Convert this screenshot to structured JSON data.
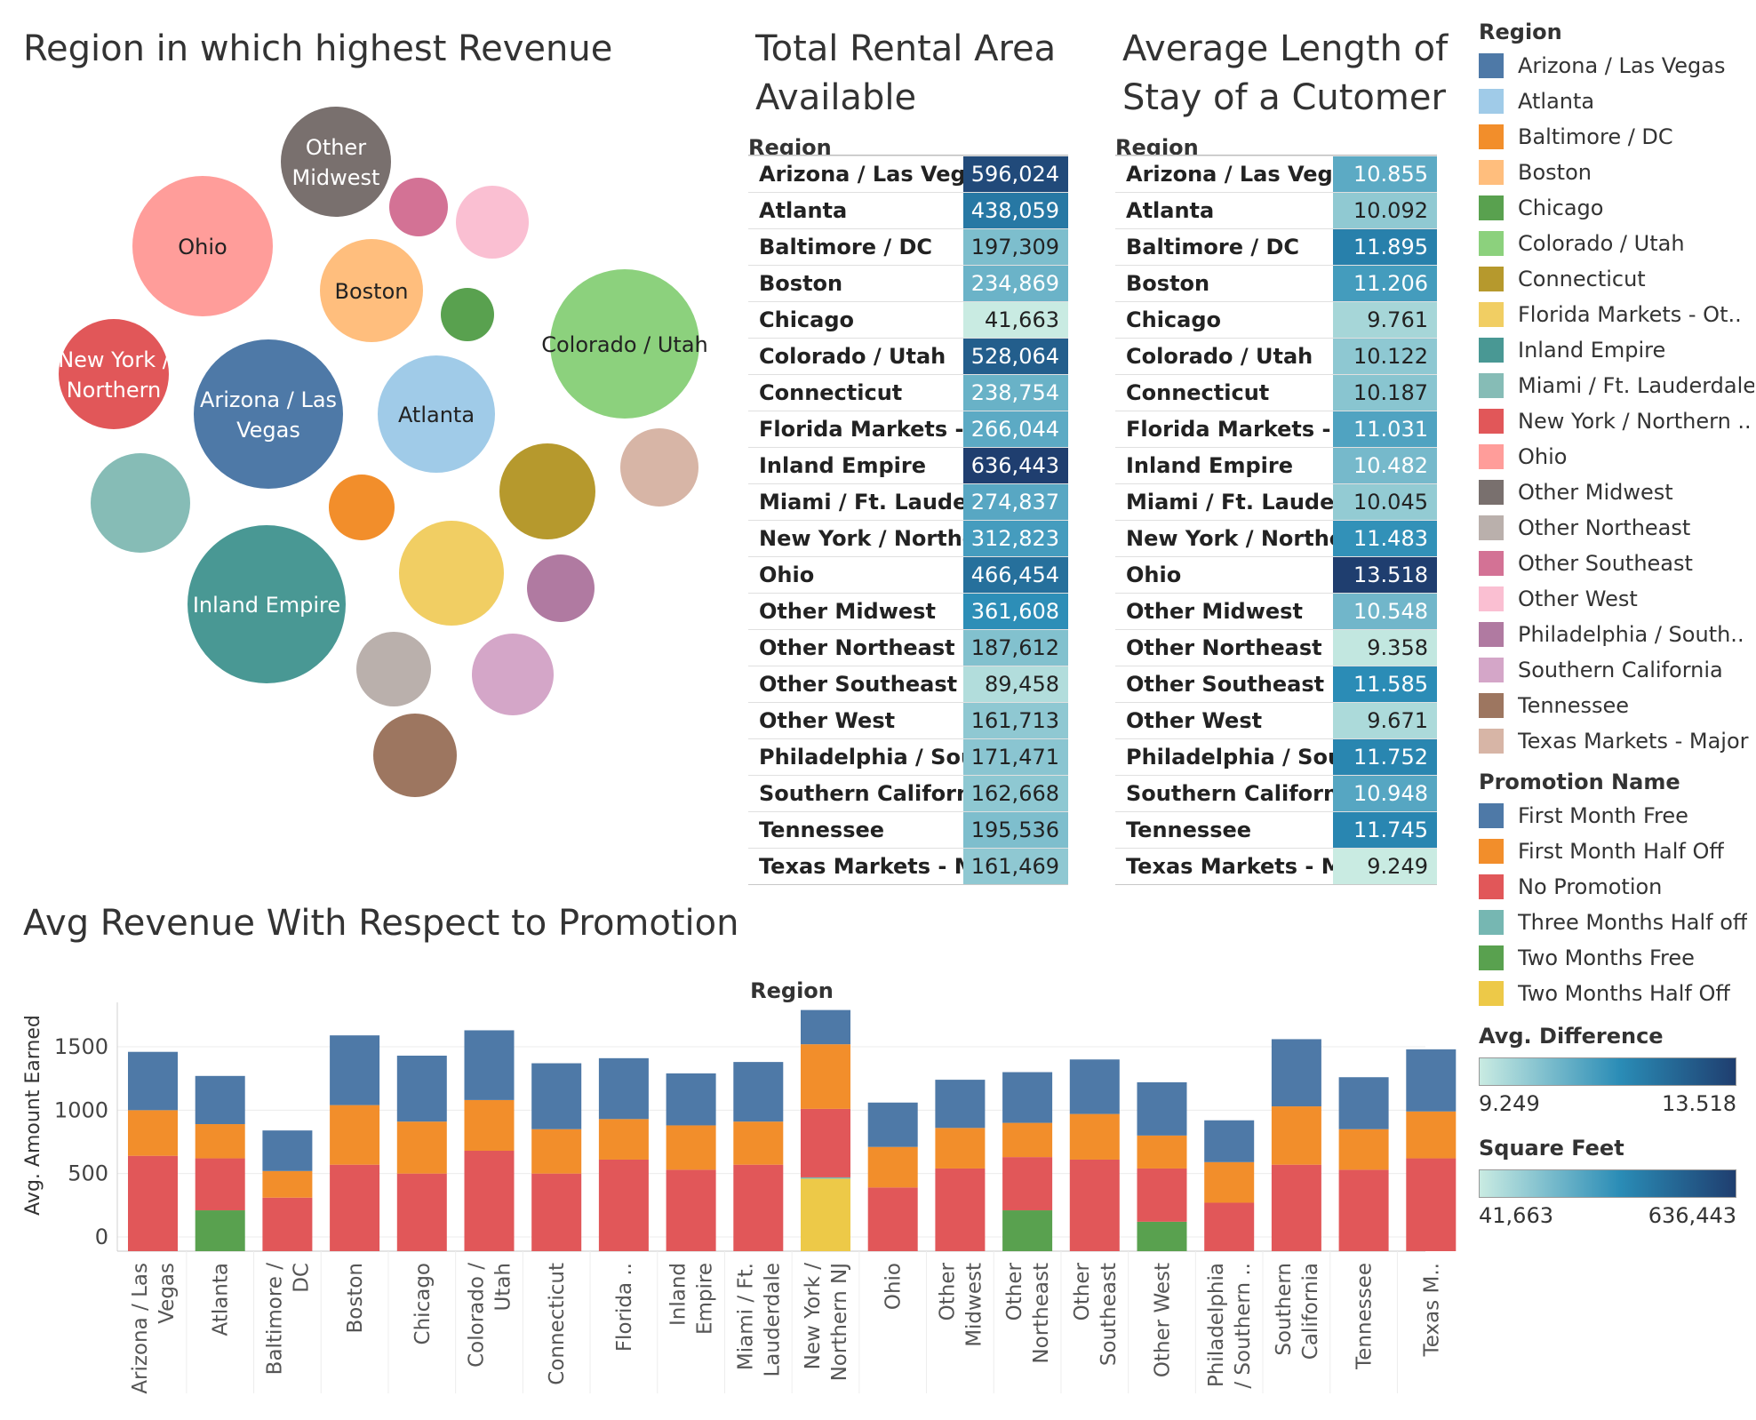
{
  "bubble_title": "Region in which highest Revenue",
  "rental_title": [
    "Total Rental Area",
    "Available"
  ],
  "stay_title": [
    "Average Length of",
    "Stay of a Cutomer"
  ],
  "promo_title": "Avg Revenue With Respect to Promotion",
  "table_header": "Region",
  "region_colors": {
    "Arizona / Las Vegas": "#4e79a7",
    "Atlanta": "#a0cbe8",
    "Baltimore / DC": "#f28e2b",
    "Boston": "#ffbe7d",
    "Chicago": "#59a14f",
    "Colorado / Utah": "#8cd17d",
    "Connecticut": "#b6992d",
    "Florida Markets - Ot..": "#f1ce63",
    "Inland Empire": "#499894",
    "Miami / Ft. Lauderdale": "#86bcb6",
    "New York / Northern ..": "#e15759",
    "Ohio": "#ff9d9a",
    "Other Midwest": "#79706e",
    "Other Northeast": "#bab0ac",
    "Other Southeast": "#d37295",
    "Other West": "#fabfd2",
    "Philadelphia / South..": "#b07aa1",
    "Southern California": "#d4a6c8",
    "Tennessee": "#9d7660",
    "Texas Markets - Major": "#d7b5a6"
  },
  "legend": {
    "region_title": "Region",
    "regions": [
      "Arizona / Las Vegas",
      "Atlanta",
      "Baltimore / DC",
      "Boston",
      "Chicago",
      "Colorado / Utah",
      "Connecticut",
      "Florida Markets - Ot..",
      "Inland Empire",
      "Miami / Ft. Lauderdale",
      "New York / Northern ..",
      "Ohio",
      "Other Midwest",
      "Other Northeast",
      "Other Southeast",
      "Other West",
      "Philadelphia / South..",
      "Southern California",
      "Tennessee",
      "Texas Markets - Major"
    ],
    "promo_title": "Promotion Name",
    "promotions": [
      {
        "name": "First Month Free",
        "color": "#4e79a7"
      },
      {
        "name": "First Month Half Off",
        "color": "#f28e2b"
      },
      {
        "name": "No Promotion",
        "color": "#e15759"
      },
      {
        "name": "Three Months Half off",
        "color": "#76b7b2"
      },
      {
        "name": "Two Months Free",
        "color": "#59a14f"
      },
      {
        "name": "Two Months Half Off",
        "color": "#edc948"
      }
    ],
    "avg_diff_title": "Avg. Difference",
    "avg_diff_min": "9.249",
    "avg_diff_max": "13.518",
    "sqft_title": "Square Feet",
    "sqft_min": "41,663",
    "sqft_max": "636,443",
    "ramp_colors": [
      "#c9ebe2",
      "#2a8cb6",
      "#1f3e6f"
    ]
  },
  "chart_data": [
    {
      "type": "bubble",
      "title": "Region in which highest Revenue",
      "bubbles": [
        {
          "name": "Ohio",
          "label": [
            "Ohio"
          ],
          "size": 79
        },
        {
          "name": "Other Midwest",
          "label": [
            "Other",
            "Midwest"
          ],
          "size": 62
        },
        {
          "name": "Other Southeast",
          "label": [],
          "size": 33
        },
        {
          "name": "Other West",
          "label": [],
          "size": 41
        },
        {
          "name": "Boston",
          "label": [
            "Boston"
          ],
          "size": 58
        },
        {
          "name": "Chicago",
          "label": [],
          "size": 30
        },
        {
          "name": "Colorado / Utah",
          "label": [
            "Colorado / Utah"
          ],
          "size": 84
        },
        {
          "name": "New York / Northern ..",
          "label": [
            "New York /",
            "Northern"
          ],
          "size": 62
        },
        {
          "name": "Arizona / Las Vegas",
          "label": [
            "Arizona / Las",
            "Vegas"
          ],
          "size": 84
        },
        {
          "name": "Atlanta",
          "label": [
            "Atlanta"
          ],
          "size": 66
        },
        {
          "name": "Texas Markets - Major",
          "label": [],
          "size": 44
        },
        {
          "name": "Miami / Ft. Lauderdale",
          "label": [],
          "size": 56
        },
        {
          "name": "Baltimore / DC",
          "label": [],
          "size": 37
        },
        {
          "name": "Connecticut",
          "label": [],
          "size": 54
        },
        {
          "name": "Inland Empire",
          "label": [
            "Inland Empire"
          ],
          "size": 89
        },
        {
          "name": "Florida Markets - Ot..",
          "label": [],
          "size": 59
        },
        {
          "name": "Philadelphia / South..",
          "label": [],
          "size": 38
        },
        {
          "name": "Other Northeast",
          "label": [],
          "size": 42
        },
        {
          "name": "Southern California",
          "label": [],
          "size": 46
        },
        {
          "name": "Tennessee",
          "label": [],
          "size": 47
        }
      ]
    },
    {
      "type": "table",
      "title": "Total Rental Area Available",
      "column_header": "Region",
      "range": [
        41663,
        636443
      ],
      "rows": [
        {
          "label": "Arizona / Las Vegas",
          "value": 596024,
          "text": "596,024"
        },
        {
          "label": "Atlanta",
          "value": 438059,
          "text": "438,059"
        },
        {
          "label": "Baltimore / DC",
          "value": 197309,
          "text": "197,309"
        },
        {
          "label": "Boston",
          "value": 234869,
          "text": "234,869"
        },
        {
          "label": "Chicago",
          "value": 41663,
          "text": "41,663"
        },
        {
          "label": "Colorado / Utah",
          "value": 528064,
          "text": "528,064"
        },
        {
          "label": "Connecticut",
          "value": 238754,
          "text": "238,754"
        },
        {
          "label": "Florida Markets - O..",
          "value": 266044,
          "text": "266,044"
        },
        {
          "label": "Inland Empire",
          "value": 636443,
          "text": "636,443"
        },
        {
          "label": "Miami / Ft. Lauder..",
          "value": 274837,
          "text": "274,837"
        },
        {
          "label": "New York / Northe..",
          "value": 312823,
          "text": "312,823"
        },
        {
          "label": "Ohio",
          "value": 466454,
          "text": "466,454"
        },
        {
          "label": "Other Midwest",
          "value": 361608,
          "text": "361,608"
        },
        {
          "label": "Other Northeast",
          "value": 187612,
          "text": "187,612"
        },
        {
          "label": "Other Southeast",
          "value": 89458,
          "text": "89,458"
        },
        {
          "label": "Other West",
          "value": 161713,
          "text": "161,713"
        },
        {
          "label": "Philadelphia / Sout..",
          "value": 171471,
          "text": "171,471"
        },
        {
          "label": "Southern California",
          "value": 162668,
          "text": "162,668"
        },
        {
          "label": "Tennessee",
          "value": 195536,
          "text": "195,536"
        },
        {
          "label": "Texas Markets - M..",
          "value": 161469,
          "text": "161,469"
        }
      ]
    },
    {
      "type": "table",
      "title": "Average Length of Stay of a Cutomer",
      "column_header": "Region",
      "range": [
        9.249,
        13.518
      ],
      "rows": [
        {
          "label": "Arizona / Las Vegas",
          "value": 10.855,
          "text": "10.855"
        },
        {
          "label": "Atlanta",
          "value": 10.092,
          "text": "10.092"
        },
        {
          "label": "Baltimore / DC",
          "value": 11.895,
          "text": "11.895"
        },
        {
          "label": "Boston",
          "value": 11.206,
          "text": "11.206"
        },
        {
          "label": "Chicago",
          "value": 9.761,
          "text": "9.761"
        },
        {
          "label": "Colorado / Utah",
          "value": 10.122,
          "text": "10.122"
        },
        {
          "label": "Connecticut",
          "value": 10.187,
          "text": "10.187"
        },
        {
          "label": "Florida Markets - O..",
          "value": 11.031,
          "text": "11.031"
        },
        {
          "label": "Inland Empire",
          "value": 10.482,
          "text": "10.482"
        },
        {
          "label": "Miami / Ft. Lauder..",
          "value": 10.045,
          "text": "10.045"
        },
        {
          "label": "New York / Northe..",
          "value": 11.483,
          "text": "11.483"
        },
        {
          "label": "Ohio",
          "value": 13.518,
          "text": "13.518"
        },
        {
          "label": "Other Midwest",
          "value": 10.548,
          "text": "10.548"
        },
        {
          "label": "Other Northeast",
          "value": 9.358,
          "text": "9.358"
        },
        {
          "label": "Other Southeast",
          "value": 11.585,
          "text": "11.585"
        },
        {
          "label": "Other West",
          "value": 9.671,
          "text": "9.671"
        },
        {
          "label": "Philadelphia / Sout..",
          "value": 11.752,
          "text": "11.752"
        },
        {
          "label": "Southern California",
          "value": 10.948,
          "text": "10.948"
        },
        {
          "label": "Tennessee",
          "value": 11.745,
          "text": "11.745"
        },
        {
          "label": "Texas Markets - M..",
          "value": 9.249,
          "text": "9.249"
        }
      ]
    },
    {
      "type": "bar",
      "stacked": true,
      "title": "Avg Revenue With Respect to Promotion",
      "xlabel": "Region",
      "ylabel": "Avg. Amount Earned",
      "ylim": [
        0,
        1800
      ],
      "yticks": [
        0,
        500,
        1000,
        1500
      ],
      "grid": true,
      "categories": [
        [
          "Arizona / Las",
          "Vegas"
        ],
        [
          "Atlanta"
        ],
        [
          "Baltimore /",
          "DC"
        ],
        [
          "Boston"
        ],
        [
          "Chicago"
        ],
        [
          "Colorado /",
          "Utah"
        ],
        [
          "Connecticut"
        ],
        [
          "Florida .."
        ],
        [
          "Inland",
          "Empire"
        ],
        [
          "Miami / Ft.",
          "Lauderdale"
        ],
        [
          "New York /",
          "Northern NJ"
        ],
        [
          "Ohio"
        ],
        [
          "Other",
          "Midwest"
        ],
        [
          "Other",
          "Northeast"
        ],
        [
          "Other",
          "Southeast"
        ],
        [
          "Other West"
        ],
        [
          "Philadelphia",
          "/ Southern .."
        ],
        [
          "Southern",
          "California"
        ],
        [
          "Tennessee"
        ],
        [
          "Texas M.."
        ]
      ],
      "series": [
        {
          "name": "Two Months Half Off",
          "color": "#edc948",
          "values": [
            0,
            0,
            0,
            0,
            0,
            0,
            0,
            0,
            0,
            0,
            460,
            0,
            0,
            0,
            0,
            0,
            0,
            0,
            0,
            0
          ]
        },
        {
          "name": "Three Months Half off",
          "color": "#76b7b2",
          "values": [
            0,
            0,
            0,
            0,
            0,
            0,
            0,
            0,
            0,
            0,
            10,
            0,
            0,
            0,
            0,
            0,
            0,
            0,
            0,
            0
          ]
        },
        {
          "name": "Two Months Free",
          "color": "#59a14f",
          "values": [
            0,
            210,
            0,
            0,
            0,
            0,
            0,
            0,
            0,
            0,
            0,
            0,
            0,
            210,
            0,
            120,
            0,
            0,
            0,
            0
          ]
        },
        {
          "name": "No Promotion",
          "color": "#e15759",
          "values": [
            640,
            410,
            310,
            570,
            500,
            680,
            500,
            610,
            530,
            570,
            540,
            390,
            540,
            420,
            610,
            420,
            270,
            570,
            530,
            620
          ]
        },
        {
          "name": "First Month Half Off",
          "color": "#f28e2b",
          "values": [
            360,
            270,
            210,
            470,
            410,
            400,
            350,
            320,
            350,
            340,
            510,
            320,
            320,
            270,
            360,
            260,
            320,
            460,
            320,
            370
          ]
        },
        {
          "name": "First Month Free",
          "color": "#4e79a7",
          "values": [
            460,
            380,
            320,
            550,
            520,
            550,
            520,
            480,
            410,
            470,
            270,
            350,
            380,
            400,
            430,
            420,
            330,
            530,
            410,
            490
          ]
        }
      ]
    }
  ]
}
